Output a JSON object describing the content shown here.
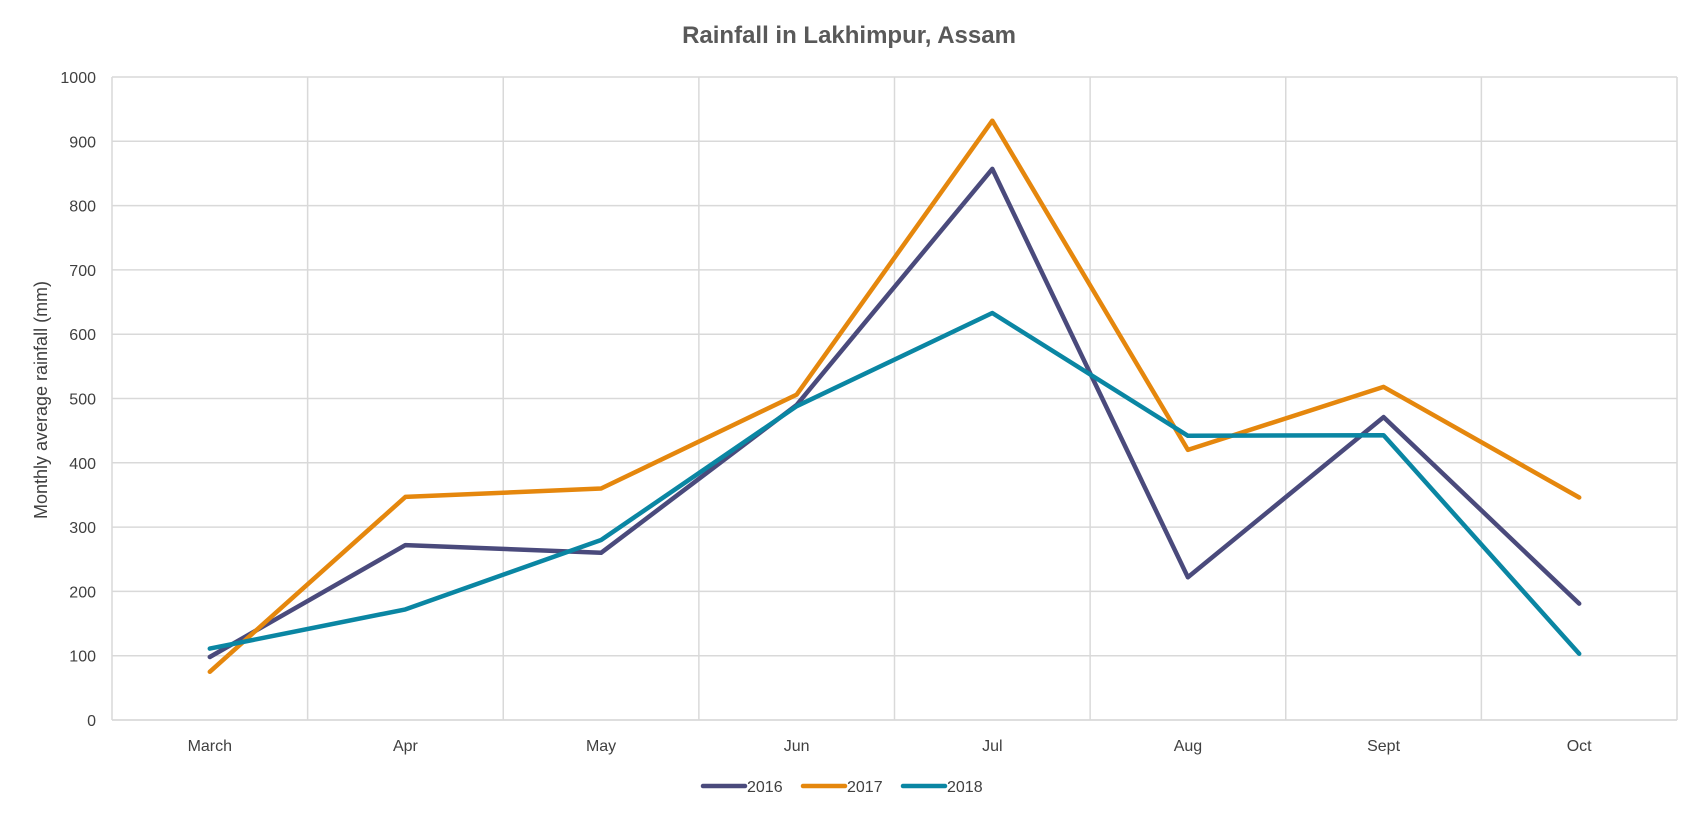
{
  "chart_data": {
    "type": "line",
    "title": "Rainfall in Lakhimpur, Assam",
    "xlabel": "",
    "ylabel": "Monthly average rainfall (mm)",
    "categories": [
      "March",
      "Apr",
      "May",
      "Jun",
      "Jul",
      "Aug",
      "Sept",
      "Oct"
    ],
    "ylim": [
      0,
      1000
    ],
    "yticks": [
      0,
      100,
      200,
      300,
      400,
      500,
      600,
      700,
      800,
      900,
      1000
    ],
    "grid": true,
    "legend_position": "bottom",
    "series": [
      {
        "name": "2016",
        "color": "#4a4a7c",
        "values": [
          98,
          272,
          260,
          490,
          857,
          222,
          471,
          181
        ]
      },
      {
        "name": "2017",
        "color": "#e5870d",
        "values": [
          75,
          347,
          360,
          506,
          932,
          420,
          518,
          346
        ]
      },
      {
        "name": "2018",
        "color": "#0a86a3",
        "values": [
          111,
          172,
          280,
          488,
          633,
          442,
          443,
          103
        ]
      }
    ]
  }
}
